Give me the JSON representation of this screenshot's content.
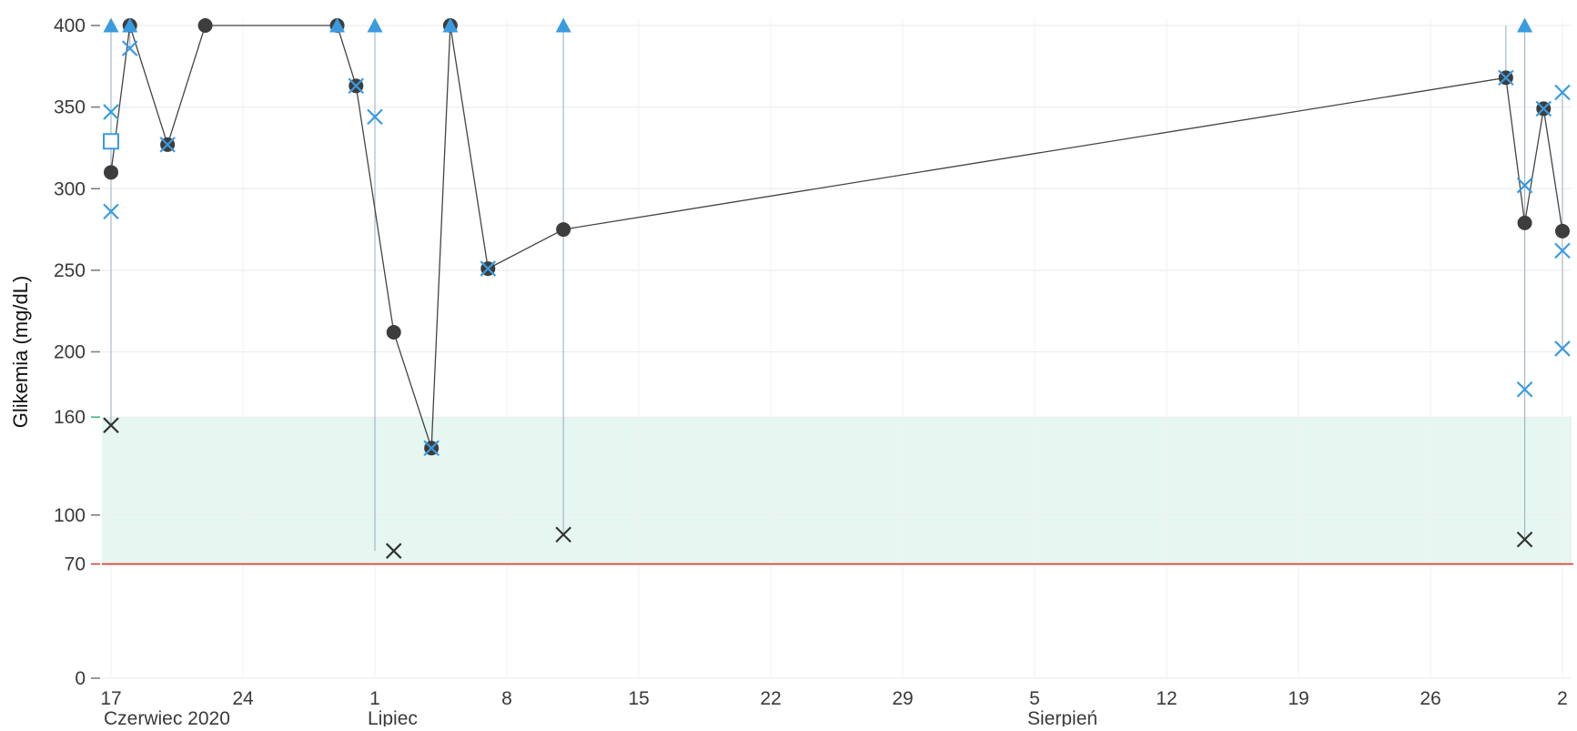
{
  "chart_data": {
    "type": "scatter",
    "title": "",
    "ylabel": "Glikemia (mg/dL)",
    "xlabel": "",
    "x_domain": [
      "2020-06-17",
      "2020-09-02"
    ],
    "ylim": [
      0,
      400
    ],
    "y_ticks": [
      {
        "value": 0,
        "label": "0"
      },
      {
        "value": 70,
        "label": "70",
        "color": "#d93a2b"
      },
      {
        "value": 100,
        "label": "100"
      },
      {
        "value": 160,
        "label": "160",
        "color": "#2fb57c"
      },
      {
        "value": 200,
        "label": "200"
      },
      {
        "value": 250,
        "label": "250"
      },
      {
        "value": 300,
        "label": "300"
      },
      {
        "value": 350,
        "label": "350"
      },
      {
        "value": 400,
        "label": "400"
      }
    ],
    "x_ticks": [
      {
        "date": "2020-06-17",
        "label": "17"
      },
      {
        "date": "2020-06-24",
        "label": "24"
      },
      {
        "date": "2020-07-01",
        "label": "1"
      },
      {
        "date": "2020-07-08",
        "label": "8"
      },
      {
        "date": "2020-07-15",
        "label": "15"
      },
      {
        "date": "2020-07-22",
        "label": "22"
      },
      {
        "date": "2020-07-29",
        "label": "29"
      },
      {
        "date": "2020-08-05",
        "label": "5"
      },
      {
        "date": "2020-08-12",
        "label": "12"
      },
      {
        "date": "2020-08-19",
        "label": "19"
      },
      {
        "date": "2020-08-26",
        "label": "26"
      },
      {
        "date": "2020-09-02",
        "label": "2"
      }
    ],
    "month_labels": [
      {
        "date": "2020-06-17",
        "label": "Czerwiec 2020"
      },
      {
        "date": "2020-07-01",
        "label": "Lipiec"
      },
      {
        "date": "2020-08-05",
        "label": "Sierpień"
      }
    ],
    "target_band": {
      "from": 70,
      "to": 160,
      "color": "#e6f6f0"
    },
    "hypo_threshold": {
      "value": 70,
      "color": "#d93a2b"
    },
    "series": [
      {
        "marker": "circle-line",
        "color": "#3d3d3d",
        "points": [
          {
            "x": "2020-06-17",
            "y": 310
          },
          {
            "x": "2020-06-18",
            "y": 400
          },
          {
            "x": "2020-06-20",
            "y": 327
          },
          {
            "x": "2020-06-22",
            "y": 400
          },
          {
            "x": "2020-06-29",
            "y": 400
          },
          {
            "x": "2020-06-30",
            "y": 363
          },
          {
            "x": "2020-07-02",
            "y": 212
          },
          {
            "x": "2020-07-04",
            "y": 141
          },
          {
            "x": "2020-07-05",
            "y": 400
          },
          {
            "x": "2020-07-07",
            "y": 251
          },
          {
            "x": "2020-07-11",
            "y": 275
          },
          {
            "x": "2020-08-30",
            "y": 368
          },
          {
            "x": "2020-08-31",
            "y": 279
          },
          {
            "x": "2020-09-01",
            "y": 349
          },
          {
            "x": "2020-09-02",
            "y": 274
          }
        ]
      },
      {
        "marker": "triangle",
        "color": "#3a9be0",
        "points": [
          {
            "x": "2020-06-17",
            "y": 400
          },
          {
            "x": "2020-06-18",
            "y": 400
          },
          {
            "x": "2020-06-29",
            "y": 400
          },
          {
            "x": "2020-07-01",
            "y": 400
          },
          {
            "x": "2020-07-05",
            "y": 400
          },
          {
            "x": "2020-07-11",
            "y": 400
          },
          {
            "x": "2020-08-31",
            "y": 400
          }
        ]
      },
      {
        "marker": "cross",
        "color": "#3a9be0",
        "points": [
          {
            "x": "2020-06-17",
            "y": 347
          },
          {
            "x": "2020-06-17",
            "y": 286
          },
          {
            "x": "2020-06-18",
            "y": 386
          },
          {
            "x": "2020-06-20",
            "y": 327
          },
          {
            "x": "2020-06-30",
            "y": 363
          },
          {
            "x": "2020-07-01",
            "y": 344
          },
          {
            "x": "2020-07-04",
            "y": 141
          },
          {
            "x": "2020-07-07",
            "y": 251
          },
          {
            "x": "2020-08-30",
            "y": 368
          },
          {
            "x": "2020-08-31",
            "y": 177
          },
          {
            "x": "2020-08-31",
            "y": 302
          },
          {
            "x": "2020-09-01",
            "y": 349
          },
          {
            "x": "2020-09-02",
            "y": 359
          },
          {
            "x": "2020-09-02",
            "y": 262
          },
          {
            "x": "2020-09-02",
            "y": 202
          }
        ]
      },
      {
        "marker": "cross",
        "color": "#333333",
        "points": [
          {
            "x": "2020-06-17",
            "y": 155
          },
          {
            "x": "2020-07-02",
            "y": 78
          },
          {
            "x": "2020-07-11",
            "y": 88
          },
          {
            "x": "2020-08-31",
            "y": 85
          }
        ]
      },
      {
        "marker": "open-square",
        "color": "#3a9be0",
        "points": [
          {
            "x": "2020-06-17",
            "y": 329
          }
        ]
      }
    ],
    "range_lines": [
      {
        "x": "2020-06-17",
        "from": 155,
        "to": 400
      },
      {
        "x": "2020-06-18",
        "from": 386,
        "to": 400
      },
      {
        "x": "2020-07-01",
        "from": 78,
        "to": 400
      },
      {
        "x": "2020-07-11",
        "from": 88,
        "to": 400
      },
      {
        "x": "2020-08-30",
        "from": 368,
        "to": 400
      },
      {
        "x": "2020-08-31",
        "from": 85,
        "to": 400
      },
      {
        "x": "2020-09-02",
        "from": 202,
        "to": 359
      }
    ],
    "grid": true,
    "legend": "none"
  }
}
